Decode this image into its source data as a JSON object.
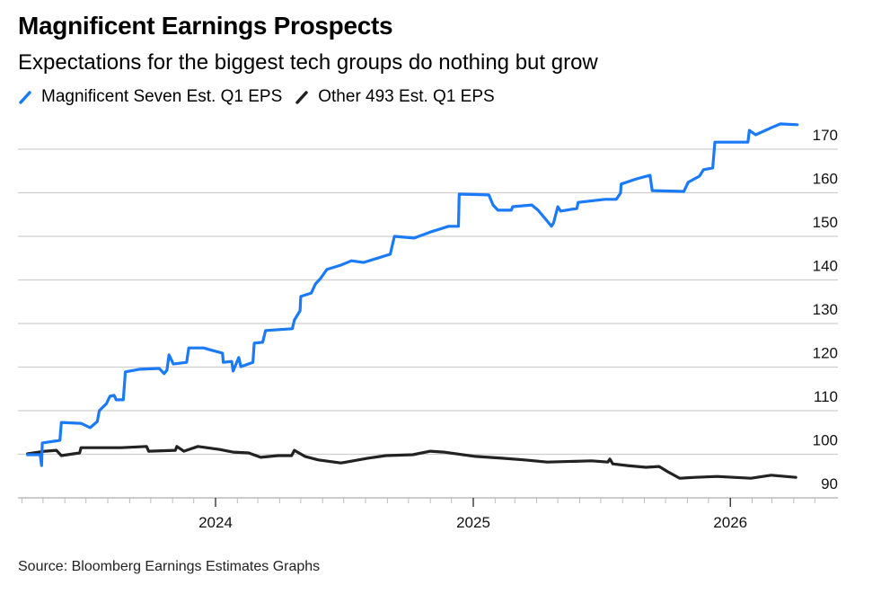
{
  "title": "Magnificent Earnings Prospects",
  "subtitle": "Expectations for the biggest tech groups do nothing but grow",
  "source": "Source: Bloomberg Earnings Estimates Graphs",
  "chart_data": {
    "type": "line",
    "title": "Magnificent Earnings Prospects",
    "subtitle": "Expectations for the biggest tech groups do nothing but grow",
    "xlabel": "",
    "ylabel": "",
    "ylim": [
      90,
      176
    ],
    "xlim": [
      "2023-04-01",
      "2026-05-01"
    ],
    "y_ticks": [
      "90",
      "100",
      "110",
      "120",
      "130",
      "140",
      "150",
      "160",
      "170"
    ],
    "x_ticks": [
      "2024",
      "2025",
      "2026"
    ],
    "grid": true,
    "y_axis_side": "right",
    "legend_placement": "top-left",
    "series": [
      {
        "name": "Magnificent Seven Est. Q1 EPS",
        "color": "#1a7af8",
        "points": [
          [
            "2023-04-09",
            99.9
          ],
          [
            "2023-04-27",
            99.9
          ],
          [
            "2023-04-29",
            97.4
          ],
          [
            "2023-04-30",
            102.6
          ],
          [
            "2023-05-25",
            103.2
          ],
          [
            "2023-05-27",
            107.3
          ],
          [
            "2023-06-24",
            107.1
          ],
          [
            "2023-07-07",
            106.1
          ],
          [
            "2023-07-17",
            107.5
          ],
          [
            "2023-07-20",
            110.0
          ],
          [
            "2023-07-30",
            111.6
          ],
          [
            "2023-08-04",
            113.3
          ],
          [
            "2023-08-10",
            113.5
          ],
          [
            "2023-08-13",
            112.5
          ],
          [
            "2023-08-23",
            112.5
          ],
          [
            "2023-08-26",
            118.9
          ],
          [
            "2023-09-15",
            119.5
          ],
          [
            "2023-10-13",
            119.7
          ],
          [
            "2023-10-20",
            118.5
          ],
          [
            "2023-10-24",
            119.3
          ],
          [
            "2023-10-27",
            122.8
          ],
          [
            "2023-11-02",
            120.7
          ],
          [
            "2023-11-21",
            121.1
          ],
          [
            "2023-11-24",
            124.4
          ],
          [
            "2023-12-15",
            124.4
          ],
          [
            "2023-12-28",
            123.8
          ],
          [
            "2024-01-11",
            123.2
          ],
          [
            "2024-01-12",
            121.1
          ],
          [
            "2024-01-24",
            121.3
          ],
          [
            "2024-01-26",
            119.1
          ],
          [
            "2024-02-03",
            122.2
          ],
          [
            "2024-02-06",
            120.1
          ],
          [
            "2024-02-23",
            121.1
          ],
          [
            "2024-02-25",
            125.5
          ],
          [
            "2024-03-08",
            125.7
          ],
          [
            "2024-03-12",
            128.4
          ],
          [
            "2024-04-19",
            128.8
          ],
          [
            "2024-04-22",
            130.8
          ],
          [
            "2024-04-30",
            132.9
          ],
          [
            "2024-05-01",
            136.2
          ],
          [
            "2024-05-16",
            137.0
          ],
          [
            "2024-05-22",
            139.1
          ],
          [
            "2024-05-29",
            140.3
          ],
          [
            "2024-06-07",
            142.4
          ],
          [
            "2024-06-27",
            143.4
          ],
          [
            "2024-07-12",
            144.4
          ],
          [
            "2024-07-29",
            144.0
          ],
          [
            "2024-08-20",
            145.1
          ],
          [
            "2024-09-05",
            145.9
          ],
          [
            "2024-09-11",
            150.0
          ],
          [
            "2024-10-09",
            149.6
          ],
          [
            "2024-11-01",
            151.0
          ],
          [
            "2024-11-27",
            152.3
          ],
          [
            "2024-12-11",
            152.3
          ],
          [
            "2024-12-12",
            159.7
          ],
          [
            "2025-01-23",
            159.5
          ],
          [
            "2025-01-29",
            157.2
          ],
          [
            "2025-02-05",
            156.0
          ],
          [
            "2025-02-24",
            156.0
          ],
          [
            "2025-02-26",
            156.8
          ],
          [
            "2025-03-25",
            157.2
          ],
          [
            "2025-04-03",
            156.0
          ],
          [
            "2025-04-16",
            153.5
          ],
          [
            "2025-04-22",
            152.3
          ],
          [
            "2025-04-25",
            153.1
          ],
          [
            "2025-05-01",
            156.8
          ],
          [
            "2025-05-05",
            155.8
          ],
          [
            "2025-05-28",
            156.4
          ],
          [
            "2025-05-30",
            157.8
          ],
          [
            "2025-07-07",
            158.5
          ],
          [
            "2025-07-23",
            158.5
          ],
          [
            "2025-07-29",
            159.9
          ],
          [
            "2025-07-30",
            162.0
          ],
          [
            "2025-08-21",
            163.2
          ],
          [
            "2025-09-09",
            164.0
          ],
          [
            "2025-09-12",
            160.5
          ],
          [
            "2025-10-27",
            160.3
          ],
          [
            "2025-11-02",
            162.4
          ],
          [
            "2025-11-18",
            163.8
          ],
          [
            "2025-11-24",
            165.3
          ],
          [
            "2025-12-07",
            165.7
          ],
          [
            "2025-12-10",
            171.6
          ],
          [
            "2026-01-26",
            171.6
          ],
          [
            "2026-01-28",
            174.3
          ],
          [
            "2026-02-06",
            173.3
          ],
          [
            "2026-02-28",
            174.9
          ],
          [
            "2026-03-13",
            175.8
          ],
          [
            "2026-04-06",
            175.6
          ]
        ]
      },
      {
        "name": "Other 493 Est. Q1 EPS",
        "color": "#222222",
        "points": [
          [
            "2023-04-09",
            100.1
          ],
          [
            "2023-05-04",
            100.7
          ],
          [
            "2023-05-20",
            100.9
          ],
          [
            "2023-05-27",
            99.7
          ],
          [
            "2023-06-22",
            100.3
          ],
          [
            "2023-06-24",
            101.5
          ],
          [
            "2023-08-20",
            101.5
          ],
          [
            "2023-09-25",
            101.8
          ],
          [
            "2023-09-28",
            100.7
          ],
          [
            "2023-11-05",
            100.9
          ],
          [
            "2023-11-07",
            101.8
          ],
          [
            "2023-11-17",
            100.7
          ],
          [
            "2023-11-24",
            101.1
          ],
          [
            "2023-12-07",
            101.8
          ],
          [
            "2024-01-07",
            101.1
          ],
          [
            "2024-01-26",
            100.5
          ],
          [
            "2024-02-17",
            100.3
          ],
          [
            "2024-03-05",
            99.3
          ],
          [
            "2024-03-30",
            99.7
          ],
          [
            "2024-04-18",
            99.7
          ],
          [
            "2024-04-22",
            100.9
          ],
          [
            "2024-05-07",
            99.5
          ],
          [
            "2024-05-26",
            98.7
          ],
          [
            "2024-06-27",
            98.0
          ],
          [
            "2024-08-04",
            99.1
          ],
          [
            "2024-08-30",
            99.7
          ],
          [
            "2024-10-07",
            99.9
          ],
          [
            "2024-11-01",
            100.7
          ],
          [
            "2024-11-20",
            100.5
          ],
          [
            "2025-01-04",
            99.5
          ],
          [
            "2025-02-11",
            99.1
          ],
          [
            "2025-03-15",
            98.7
          ],
          [
            "2025-04-16",
            98.2
          ],
          [
            "2025-06-18",
            98.5
          ],
          [
            "2025-07-11",
            98.2
          ],
          [
            "2025-07-14",
            98.9
          ],
          [
            "2025-07-18",
            97.8
          ],
          [
            "2025-08-08",
            97.4
          ],
          [
            "2025-09-03",
            97.0
          ],
          [
            "2025-09-22",
            97.2
          ],
          [
            "2025-10-04",
            96.0
          ],
          [
            "2025-10-21",
            94.5
          ],
          [
            "2025-11-12",
            94.7
          ],
          [
            "2025-12-13",
            94.9
          ],
          [
            "2026-01-30",
            94.5
          ],
          [
            "2026-02-28",
            95.2
          ],
          [
            "2026-04-04",
            94.7
          ]
        ]
      }
    ]
  }
}
